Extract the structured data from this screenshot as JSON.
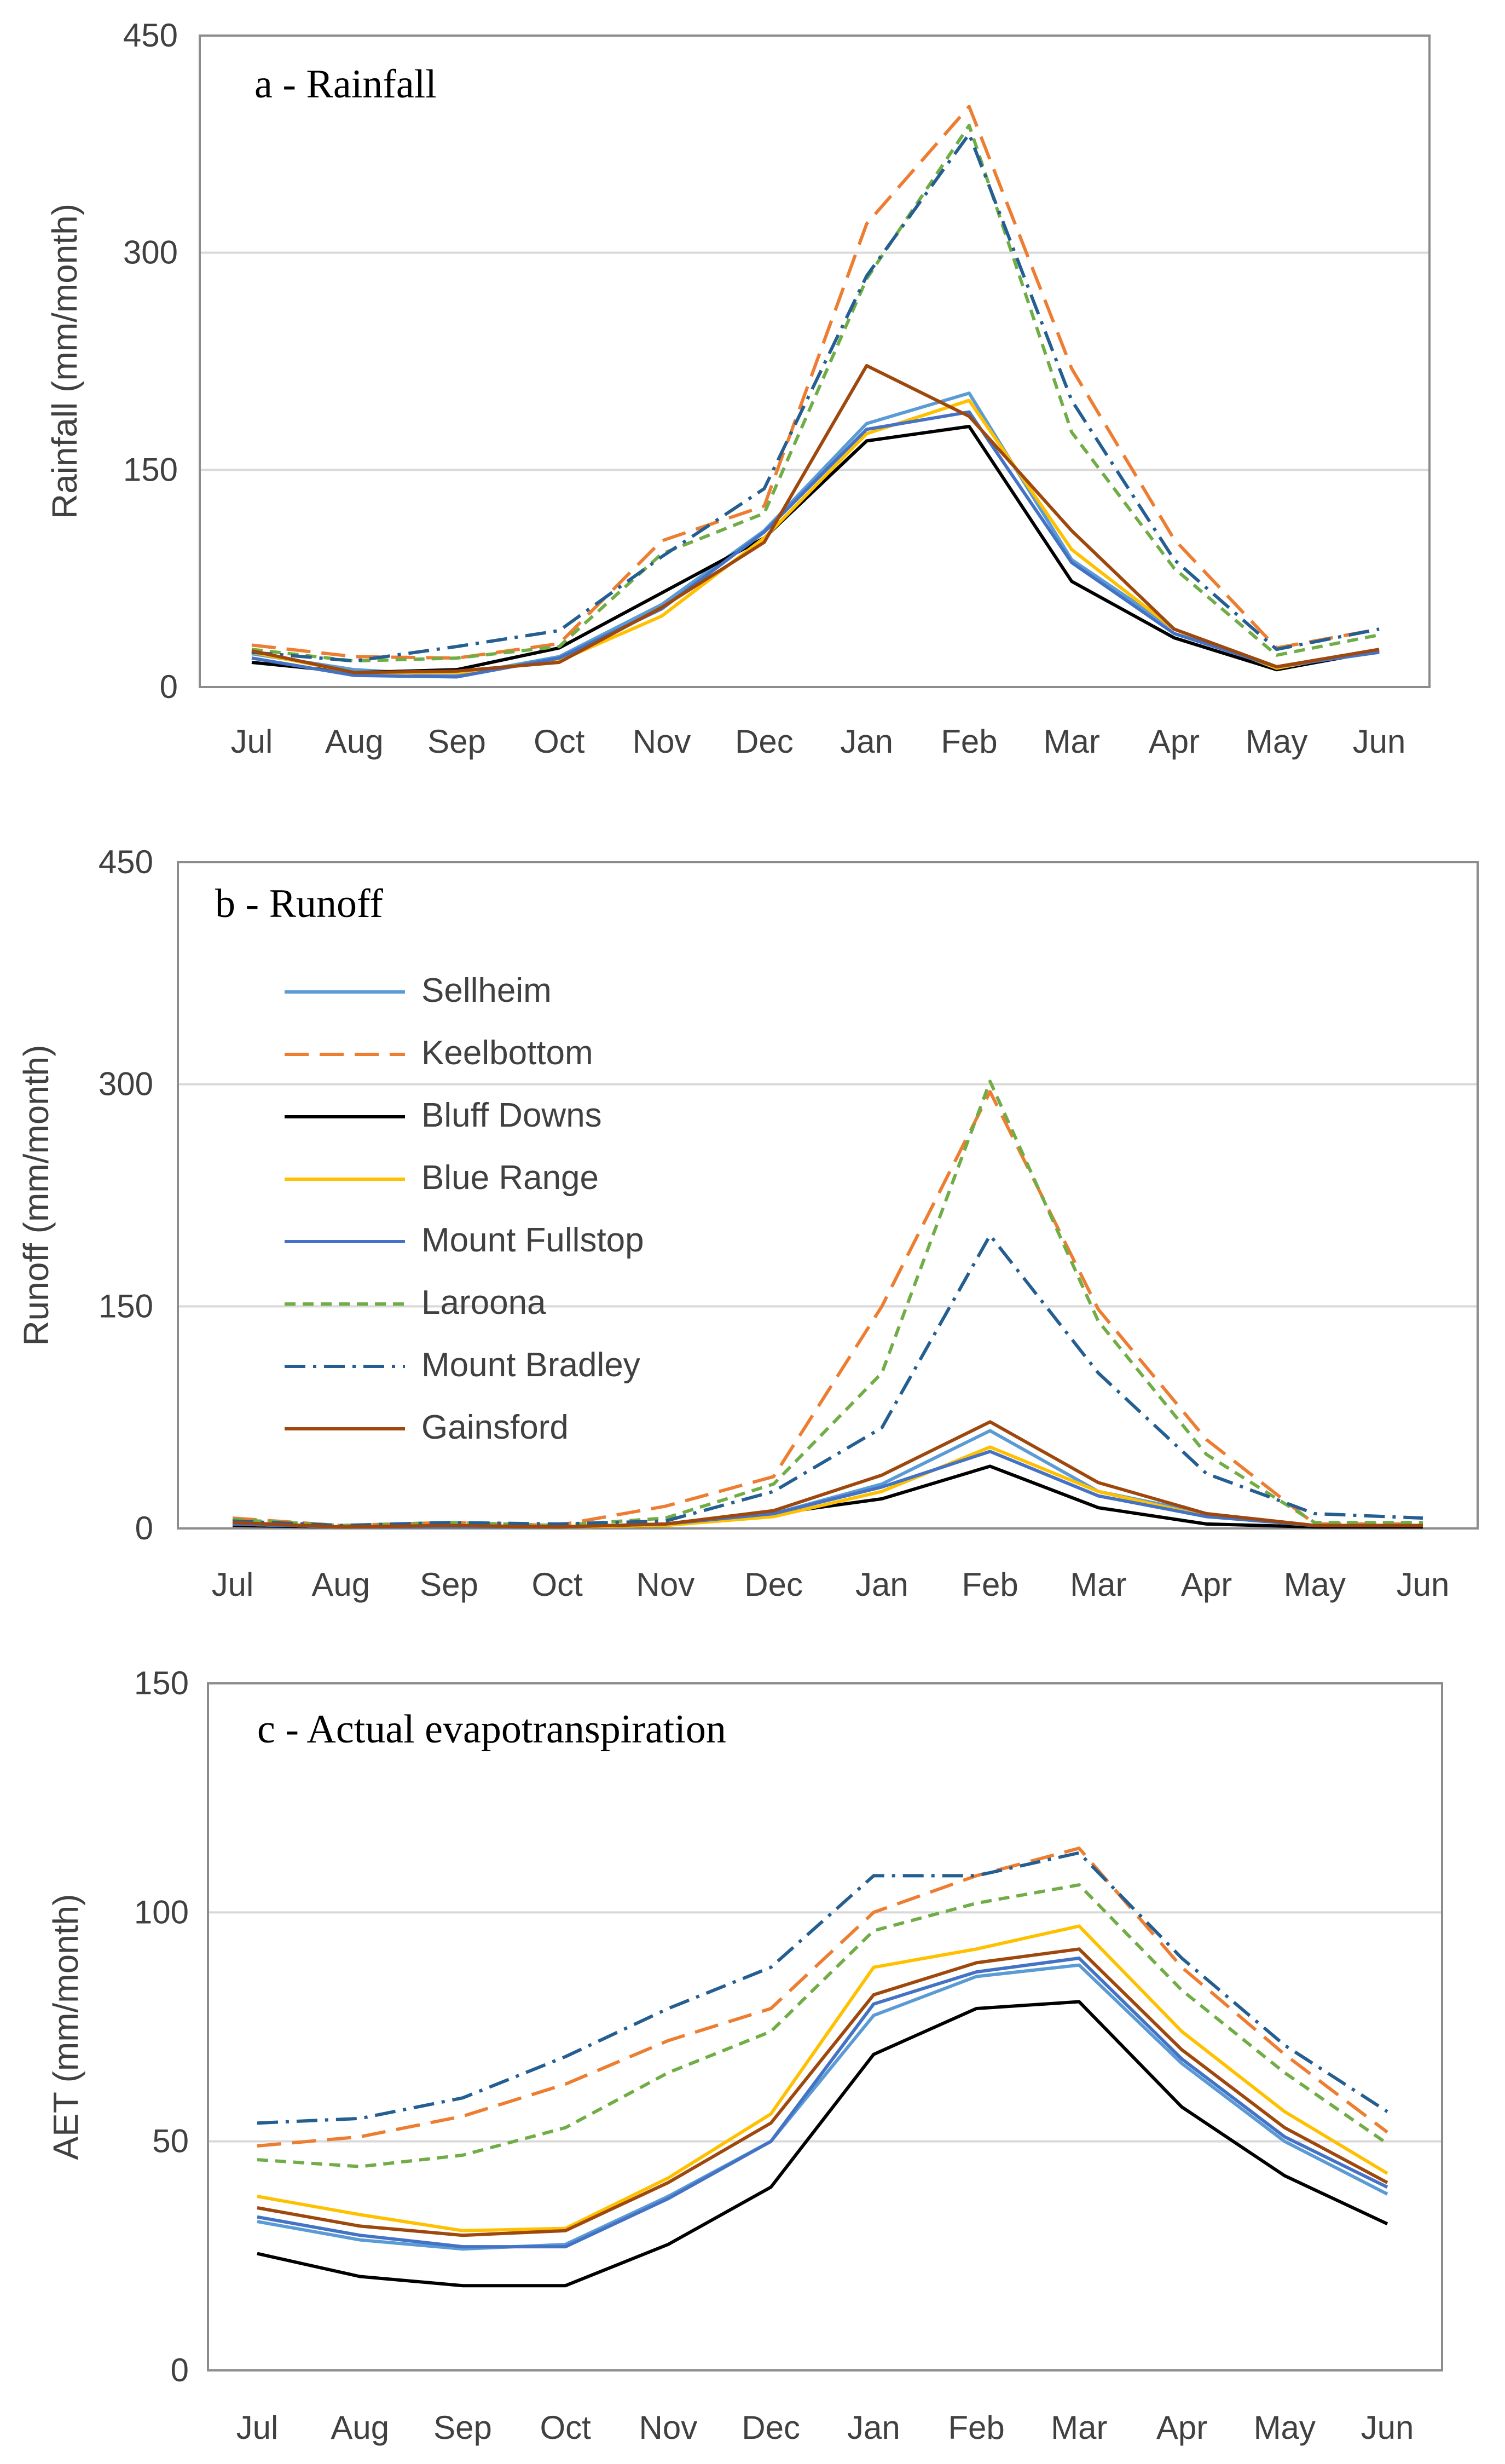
{
  "series_styles": [
    {
      "name": "Sellheim",
      "color": "#5b9bd5",
      "dash": "none"
    },
    {
      "name": "Keelbottom",
      "color": "#ed7d31",
      "dash": "long-dash"
    },
    {
      "name": "Bluff Downs",
      "color": "#000000",
      "dash": "none"
    },
    {
      "name": "Blue Range",
      "color": "#ffc000",
      "dash": "none"
    },
    {
      "name": "Mount Fullstop",
      "color": "#4472c4",
      "dash": "none"
    },
    {
      "name": "Laroona",
      "color": "#70ad47",
      "dash": "short-dash"
    },
    {
      "name": "Mount Bradley",
      "color": "#255e91",
      "dash": "dash-dot"
    },
    {
      "name": "Gainsford",
      "color": "#9e480e",
      "dash": "none"
    }
  ],
  "chart_data": [
    {
      "type": "line",
      "title": "a - Rainfall",
      "xlabel": "",
      "ylabel": "Rainfall (mm/month)",
      "ylim": [
        0,
        450
      ],
      "yticks": [
        "0",
        "150",
        "300",
        "450"
      ],
      "grid": true,
      "legend": "none",
      "categories": [
        "Jul",
        "Aug",
        "Sep",
        "Oct",
        "Nov",
        "Dec",
        "Jan",
        "Feb",
        "Mar",
        "Apr",
        "May",
        "Jun"
      ],
      "series": [
        {
          "name": "Sellheim",
          "values": [
            23,
            12,
            8,
            21,
            57,
            108,
            182,
            203,
            88,
            40,
            14,
            24
          ]
        },
        {
          "name": "Keelbottom",
          "values": [
            29,
            21,
            20,
            30,
            101,
            125,
            320,
            401,
            220,
            102,
            27,
            40
          ]
        },
        {
          "name": "Bluff Downs",
          "values": [
            17,
            10,
            12,
            27,
            65,
            103,
            170,
            180,
            73,
            34,
            12,
            25
          ]
        },
        {
          "name": "Blue Range",
          "values": [
            24,
            10,
            10,
            18,
            49,
            103,
            175,
            198,
            95,
            40,
            13,
            26
          ]
        },
        {
          "name": "Mount Fullstop",
          "values": [
            20,
            8,
            7,
            20,
            54,
            107,
            178,
            190,
            86,
            37,
            14,
            24
          ]
        },
        {
          "name": "Laroona",
          "values": [
            26,
            18,
            20,
            28,
            92,
            120,
            282,
            388,
            176,
            82,
            22,
            36
          ]
        },
        {
          "name": "Mount Bradley",
          "values": [
            24,
            18,
            28,
            39,
            90,
            137,
            284,
            382,
            198,
            88,
            26,
            40
          ]
        },
        {
          "name": "Gainsford",
          "values": [
            25,
            10,
            11,
            17,
            55,
            100,
            222,
            187,
            108,
            40,
            14,
            26
          ]
        }
      ]
    },
    {
      "type": "line",
      "title": "b - Runoff",
      "xlabel": "",
      "ylabel": "Runoff (mm/month)",
      "ylim": [
        0,
        450
      ],
      "yticks": [
        "0",
        "150",
        "300",
        "450"
      ],
      "grid": true,
      "legend": "top-left",
      "categories": [
        "Jul",
        "Aug",
        "Sep",
        "Oct",
        "Nov",
        "Dec",
        "Jan",
        "Feb",
        "Mar",
        "Apr",
        "May",
        "Jun"
      ],
      "series": [
        {
          "name": "Sellheim",
          "values": [
            4,
            1,
            2,
            1,
            2,
            10,
            30,
            66,
            25,
            10,
            2,
            2
          ]
        },
        {
          "name": "Keelbottom",
          "values": [
            7,
            2,
            4,
            2,
            15,
            35,
            150,
            295,
            148,
            60,
            3,
            3
          ]
        },
        {
          "name": "Bluff Downs",
          "values": [
            2,
            1,
            1,
            1,
            2,
            10,
            20,
            42,
            14,
            3,
            1,
            1
          ]
        },
        {
          "name": "Blue Range",
          "values": [
            3,
            1,
            1,
            1,
            2,
            8,
            25,
            55,
            25,
            8,
            2,
            2
          ]
        },
        {
          "name": "Mount Fullstop",
          "values": [
            3,
            1,
            1,
            1,
            3,
            10,
            28,
            52,
            22,
            8,
            2,
            2
          ]
        },
        {
          "name": "Laroona",
          "values": [
            6,
            2,
            4,
            2,
            7,
            30,
            105,
            302,
            140,
            50,
            4,
            4
          ]
        },
        {
          "name": "Mount Bradley",
          "values": [
            5,
            2,
            4,
            3,
            5,
            25,
            68,
            198,
            105,
            37,
            10,
            7
          ]
        },
        {
          "name": "Gainsford",
          "values": [
            4,
            1,
            2,
            1,
            3,
            12,
            36,
            72,
            31,
            10,
            2,
            2
          ]
        }
      ]
    },
    {
      "type": "line",
      "title": "c - Actual evapotranspiration",
      "xlabel": "",
      "ylabel": "AET (mm/month)",
      "ylim": [
        0,
        150
      ],
      "yticks": [
        "0",
        "50",
        "100",
        "150"
      ],
      "grid": true,
      "legend": "none",
      "categories": [
        "Jul",
        "Aug",
        "Sep",
        "Oct",
        "Nov",
        "Dec",
        "Jan",
        "Feb",
        "Mar",
        "Apr",
        "May",
        "Jun"
      ],
      "series": [
        {
          "name": "Sellheim",
          "values": [
            32.5,
            28.5,
            26.5,
            27.5,
            38,
            50,
            77.5,
            86,
            88.5,
            67,
            50,
            38.5
          ]
        },
        {
          "name": "Keelbottom",
          "values": [
            49,
            51,
            55.5,
            62.5,
            72,
            79,
            100,
            108,
            114,
            88,
            69,
            52
          ]
        },
        {
          "name": "Bluff Downs",
          "values": [
            25.5,
            20.5,
            18.5,
            18.5,
            27.5,
            40,
            69,
            79,
            80.5,
            57.5,
            42.5,
            32
          ]
        },
        {
          "name": "Blue Range",
          "values": [
            38,
            34,
            30.5,
            31,
            42,
            56,
            88,
            92,
            97,
            74,
            56.5,
            43
          ]
        },
        {
          "name": "Mount Fullstop",
          "values": [
            33.5,
            29.5,
            27,
            27,
            37.5,
            50,
            80,
            87,
            90,
            68,
            51,
            40
          ]
        },
        {
          "name": "Laroona",
          "values": [
            46,
            44.5,
            47,
            53,
            65,
            74,
            96,
            102,
            106,
            83,
            65,
            49.5
          ]
        },
        {
          "name": "Mount Bradley",
          "values": [
            54,
            55,
            59.5,
            68.5,
            79,
            88,
            108,
            108,
            113,
            90,
            71,
            56.5
          ]
        },
        {
          "name": "Gainsford",
          "values": [
            35.5,
            31.5,
            29.5,
            30.5,
            41,
            54,
            82,
            89,
            92,
            70,
            53,
            41
          ]
        }
      ]
    }
  ]
}
